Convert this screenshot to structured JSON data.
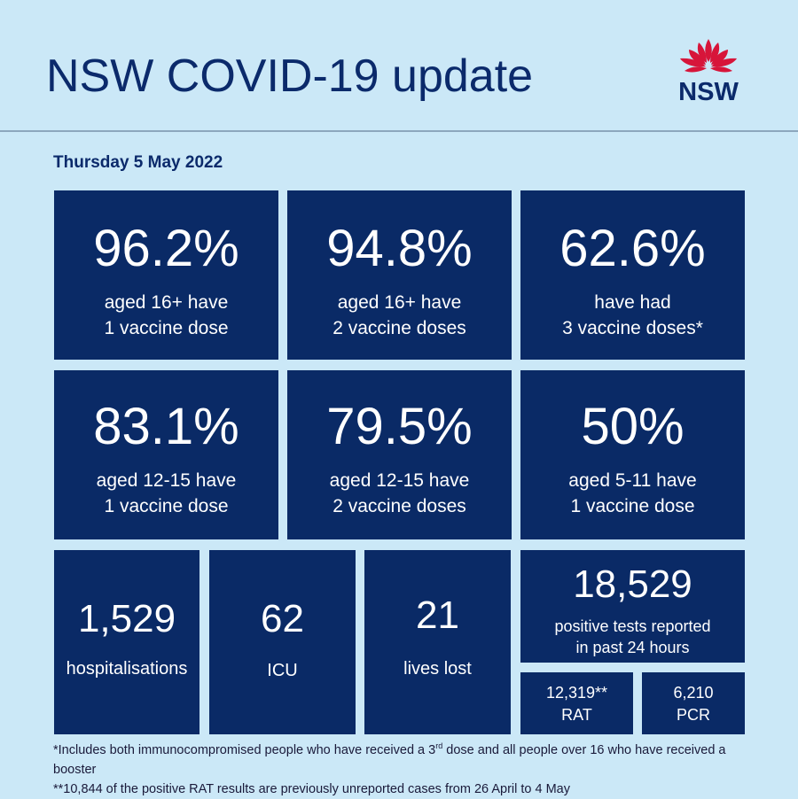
{
  "header": {
    "title": "NSW COVID-19 update",
    "logo_text": "NSW"
  },
  "date": "Thursday 5 May 2022",
  "vaccination": [
    {
      "value": "96.2%",
      "line1": "aged 16+ have",
      "line2": "1 vaccine dose"
    },
    {
      "value": "94.8%",
      "line1": "aged 16+ have",
      "line2": "2 vaccine doses"
    },
    {
      "value": "62.6%",
      "line1": "have had",
      "line2": "3 vaccine doses*"
    },
    {
      "value": "83.1%",
      "line1": "aged 12-15 have",
      "line2": "1 vaccine dose"
    },
    {
      "value": "79.5%",
      "line1": "aged 12-15 have",
      "line2": "2 vaccine doses"
    },
    {
      "value": "50%",
      "line1": "aged 5-11 have",
      "line2": "1 vaccine dose"
    }
  ],
  "stats": [
    {
      "value": "1,529",
      "label": "hospitalisations"
    },
    {
      "value": "62",
      "label": "ICU"
    },
    {
      "value": "21",
      "label": "lives lost"
    }
  ],
  "positive_tests": {
    "value": "18,529",
    "line1": "positive tests reported",
    "line2": "in past 24 hours",
    "rat_value": "12,319**",
    "rat_label": "RAT",
    "pcr_value": "6,210",
    "pcr_label": "PCR"
  },
  "footnotes": {
    "note1_start": "*Includes both immunocompromised people who have received a 3",
    "note1_sup": "rd",
    "note1_end": " dose and all people over 16 who have received a booster",
    "note2": "**10,844 of the positive RAT results are previously unreported cases from 26 April to 4 May"
  },
  "colors": {
    "background": "#cbe8f7",
    "tile": "#0a2a66",
    "title": "#0b2a6b",
    "waratah_red": "#d7153a"
  }
}
